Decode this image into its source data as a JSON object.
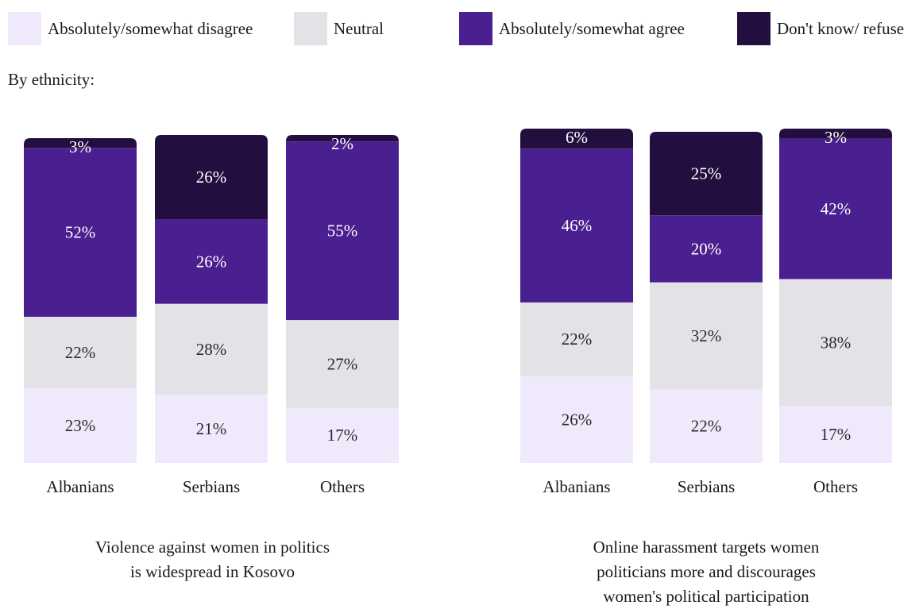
{
  "legend": [
    {
      "label": "Absolutely/somewhat disagree",
      "color": "#efe9fb"
    },
    {
      "label": "Neutral",
      "color": "#e3e2e6"
    },
    {
      "label": "Absolutely/somewhat agree",
      "color": "#4a1f8f"
    },
    {
      "label": "Don't know/ refuse",
      "color": "#230f3f"
    }
  ],
  "subtitle": "By ethnicity:",
  "chart_data": [
    {
      "type": "bar",
      "stacked": true,
      "title_lines": [
        "Violence against women in politics",
        "is widespread in Kosovo"
      ],
      "categories": [
        "Albanians",
        "Serbians",
        "Others"
      ],
      "series": [
        {
          "name": "Absolutely/somewhat disagree",
          "values": [
            23,
            21,
            17
          ],
          "labels": [
            "23%",
            "21%",
            "17%"
          ]
        },
        {
          "name": "Neutral",
          "values": [
            22,
            28,
            27
          ],
          "labels": [
            "22%",
            "28%",
            "27%"
          ]
        },
        {
          "name": "Absolutely/somewhat agree",
          "values": [
            52,
            26,
            55
          ],
          "labels": [
            "52%",
            "26%",
            "55%"
          ]
        },
        {
          "name": "Don't know/ refuse",
          "values": [
            3,
            26,
            2
          ],
          "labels": [
            "3%",
            "26%",
            "2%"
          ]
        }
      ]
    },
    {
      "type": "bar",
      "stacked": true,
      "title_lines": [
        "Online harassment targets women",
        "politicians more and discourages",
        "women's political participation"
      ],
      "categories": [
        "Albanians",
        "Serbians",
        "Others"
      ],
      "series": [
        {
          "name": "Absolutely/somewhat disagree",
          "values": [
            26,
            22,
            17
          ],
          "labels": [
            "26%",
            "22%",
            "17%"
          ]
        },
        {
          "name": "Neutral",
          "values": [
            22,
            32,
            38
          ],
          "labels": [
            "22%",
            "32%",
            "38%"
          ]
        },
        {
          "name": "Absolutely/somewhat agree",
          "values": [
            46,
            20,
            42
          ],
          "labels": [
            "46%",
            "20%",
            "42%"
          ]
        },
        {
          "name": "Don't know/ refuse",
          "values": [
            6,
            25,
            3
          ],
          "labels": [
            "6%",
            "25%",
            "3%"
          ]
        }
      ]
    }
  ]
}
